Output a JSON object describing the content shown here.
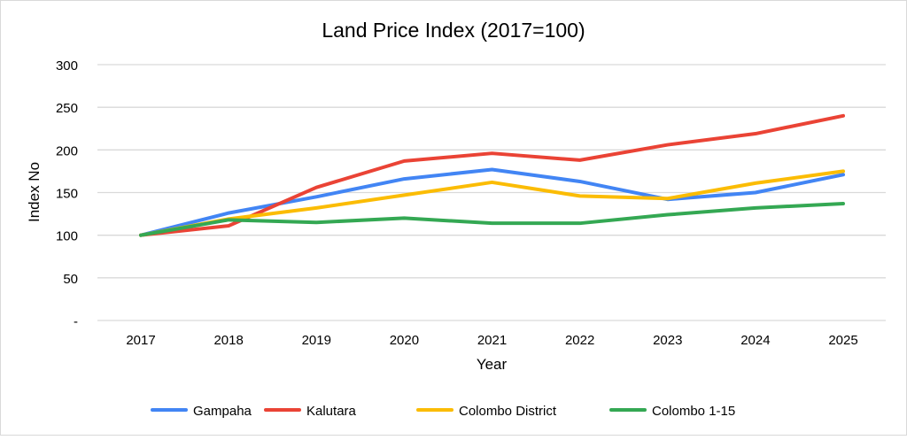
{
  "chart_data": {
    "type": "line",
    "title": "Land Price Index (2017=100)",
    "xlabel": "Year",
    "ylabel": "Index No",
    "categories": [
      "2017",
      "2018",
      "2019",
      "2020",
      "2021",
      "2022",
      "2023",
      "2024",
      "2025"
    ],
    "ylim": [
      0,
      300
    ],
    "yticks": [
      0,
      50,
      100,
      150,
      200,
      250,
      300
    ],
    "ytick_labels": [
      "-",
      "50",
      "100",
      "150",
      "200",
      "250",
      "300"
    ],
    "grid": true,
    "legend": "bottom",
    "series": [
      {
        "name": "Gampaha",
        "color": "#4285f4",
        "values": [
          100,
          126,
          145,
          166,
          177,
          163,
          142,
          150,
          171
        ]
      },
      {
        "name": "Kalutara",
        "color": "#ea4335",
        "values": [
          100,
          111,
          156,
          187,
          196,
          188,
          206,
          219,
          240
        ]
      },
      {
        "name": "Colombo District",
        "color": "#fbbc04",
        "values": [
          100,
          119,
          132,
          147,
          162,
          146,
          143,
          161,
          175
        ]
      },
      {
        "name": "Colombo 1-15",
        "color": "#34a853",
        "values": [
          100,
          118,
          115,
          120,
          114,
          114,
          124,
          132,
          137
        ]
      }
    ]
  }
}
